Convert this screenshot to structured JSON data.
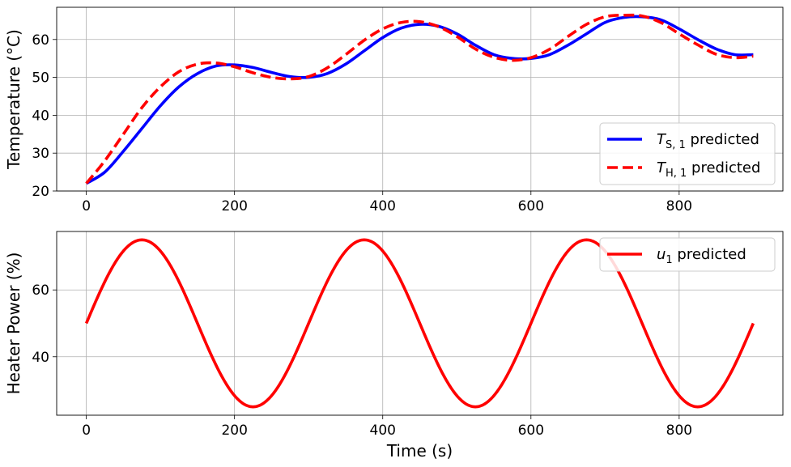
{
  "chart_data": [
    {
      "type": "line",
      "ylabel": "Temperature (°C)",
      "xlim": [
        -40,
        940
      ],
      "ylim": [
        20,
        68.5
      ],
      "xticks": [
        0,
        200,
        400,
        600,
        800
      ],
      "yticks": [
        20,
        30,
        40,
        50,
        60
      ],
      "grid": true,
      "legend_position": "lower-right",
      "series": [
        {
          "name": "T_{S,1} predicted",
          "legend_main": "T",
          "legend_sub": "S, 1",
          "legend_rest": " predicted",
          "color": "#0000ff",
          "style": "solid",
          "x": [
            0,
            25,
            50,
            75,
            100,
            125,
            150,
            175,
            200,
            225,
            250,
            275,
            300,
            325,
            350,
            375,
            400,
            425,
            450,
            475,
            500,
            525,
            550,
            575,
            600,
            625,
            650,
            675,
            700,
            725,
            750,
            775,
            800,
            825,
            850,
            875,
            900
          ],
          "y": [
            22,
            25,
            30.5,
            36.5,
            42.5,
            47.5,
            51,
            53,
            53.3,
            52.6,
            51.3,
            50.2,
            50,
            51,
            53.5,
            57,
            60.5,
            63,
            64,
            63.5,
            61.5,
            58.5,
            56,
            55,
            55,
            56,
            58.5,
            61.5,
            64.5,
            65.8,
            66,
            65.2,
            62.8,
            60,
            57.5,
            56,
            56
          ]
        },
        {
          "name": "T_{H,1} predicted",
          "legend_main": "T",
          "legend_sub": "H, 1",
          "legend_rest": " predicted",
          "color": "#ff0000",
          "style": "dashed",
          "x": [
            0,
            25,
            50,
            75,
            100,
            125,
            150,
            175,
            200,
            225,
            250,
            275,
            300,
            325,
            350,
            375,
            400,
            425,
            450,
            475,
            500,
            525,
            550,
            575,
            600,
            625,
            650,
            675,
            700,
            725,
            750,
            775,
            800,
            825,
            850,
            875,
            900
          ],
          "y": [
            22,
            28,
            35,
            42,
            47.5,
            51.5,
            53.5,
            53.8,
            52.8,
            51.2,
            50,
            49.6,
            50.2,
            52.5,
            56,
            59.8,
            62.8,
            64.5,
            64.7,
            63.4,
            60.8,
            57.5,
            55.3,
            54.5,
            55.2,
            57.4,
            60.8,
            64,
            66,
            66.4,
            66.2,
            64.5,
            61.5,
            58.6,
            56.1,
            55.2,
            55.6
          ]
        }
      ]
    },
    {
      "type": "line",
      "xlabel": "Time (s)",
      "ylabel": "Heater Power (%)",
      "xlim": [
        -40,
        940
      ],
      "ylim": [
        22.5,
        77.5
      ],
      "xticks": [
        0,
        200,
        400,
        600,
        800
      ],
      "yticks": [
        40,
        60
      ],
      "grid": true,
      "legend_position": "upper-right",
      "series": [
        {
          "name": "u_1 predicted",
          "legend_main": "u",
          "legend_sub": "1",
          "legend_rest": " predicted",
          "color": "#ff0000",
          "style": "solid",
          "function": "50 + 25*sin(2*pi*t/300)",
          "x_range": [
            0,
            900
          ]
        }
      ]
    }
  ]
}
